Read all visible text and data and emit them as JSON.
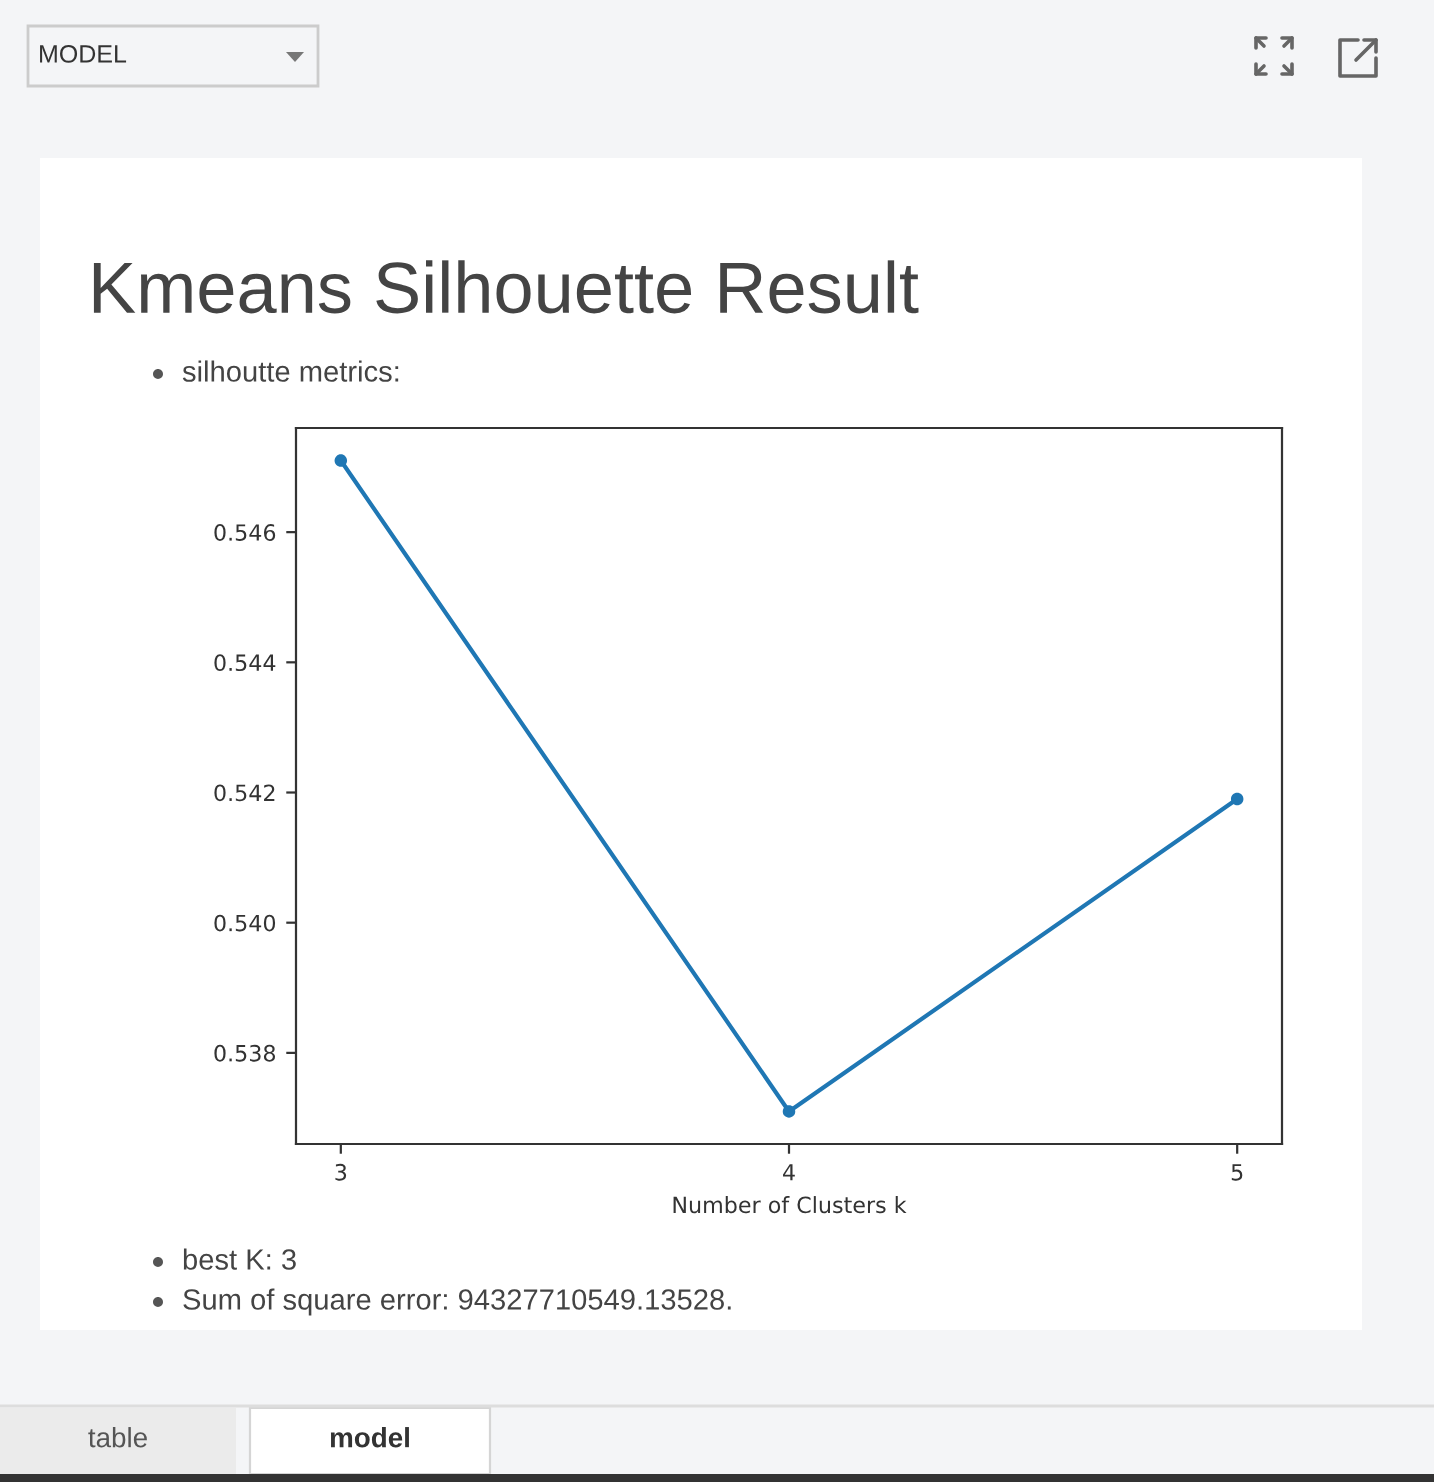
{
  "chart_data": {
    "type": "line",
    "title": "Kmeans Silhouette Result",
    "subtitle": "silhoutte metrics:",
    "xlabel": "Number of Clusters k",
    "x": [
      3,
      4,
      5
    ],
    "series": [
      {
        "color": "#1f77b4",
        "values": [
          0.5471,
          0.5371,
          0.5419
        ]
      }
    ],
    "xlim": [
      2.9,
      5.1
    ],
    "xticks": [
      3,
      4,
      5
    ],
    "ylim": [
      0.5366,
      0.5476
    ],
    "yticks": [
      0.538,
      {
        "value": 0.54,
        "label": "0.540"
      },
      0.542,
      0.544,
      0.546
    ],
    "marker": "circle",
    "line_style": "solid",
    "annotations": [
      "MODEL",
      "best K: 3",
      "Sum of square error: 94327710549.13528.",
      "table",
      "model"
    ]
  }
}
